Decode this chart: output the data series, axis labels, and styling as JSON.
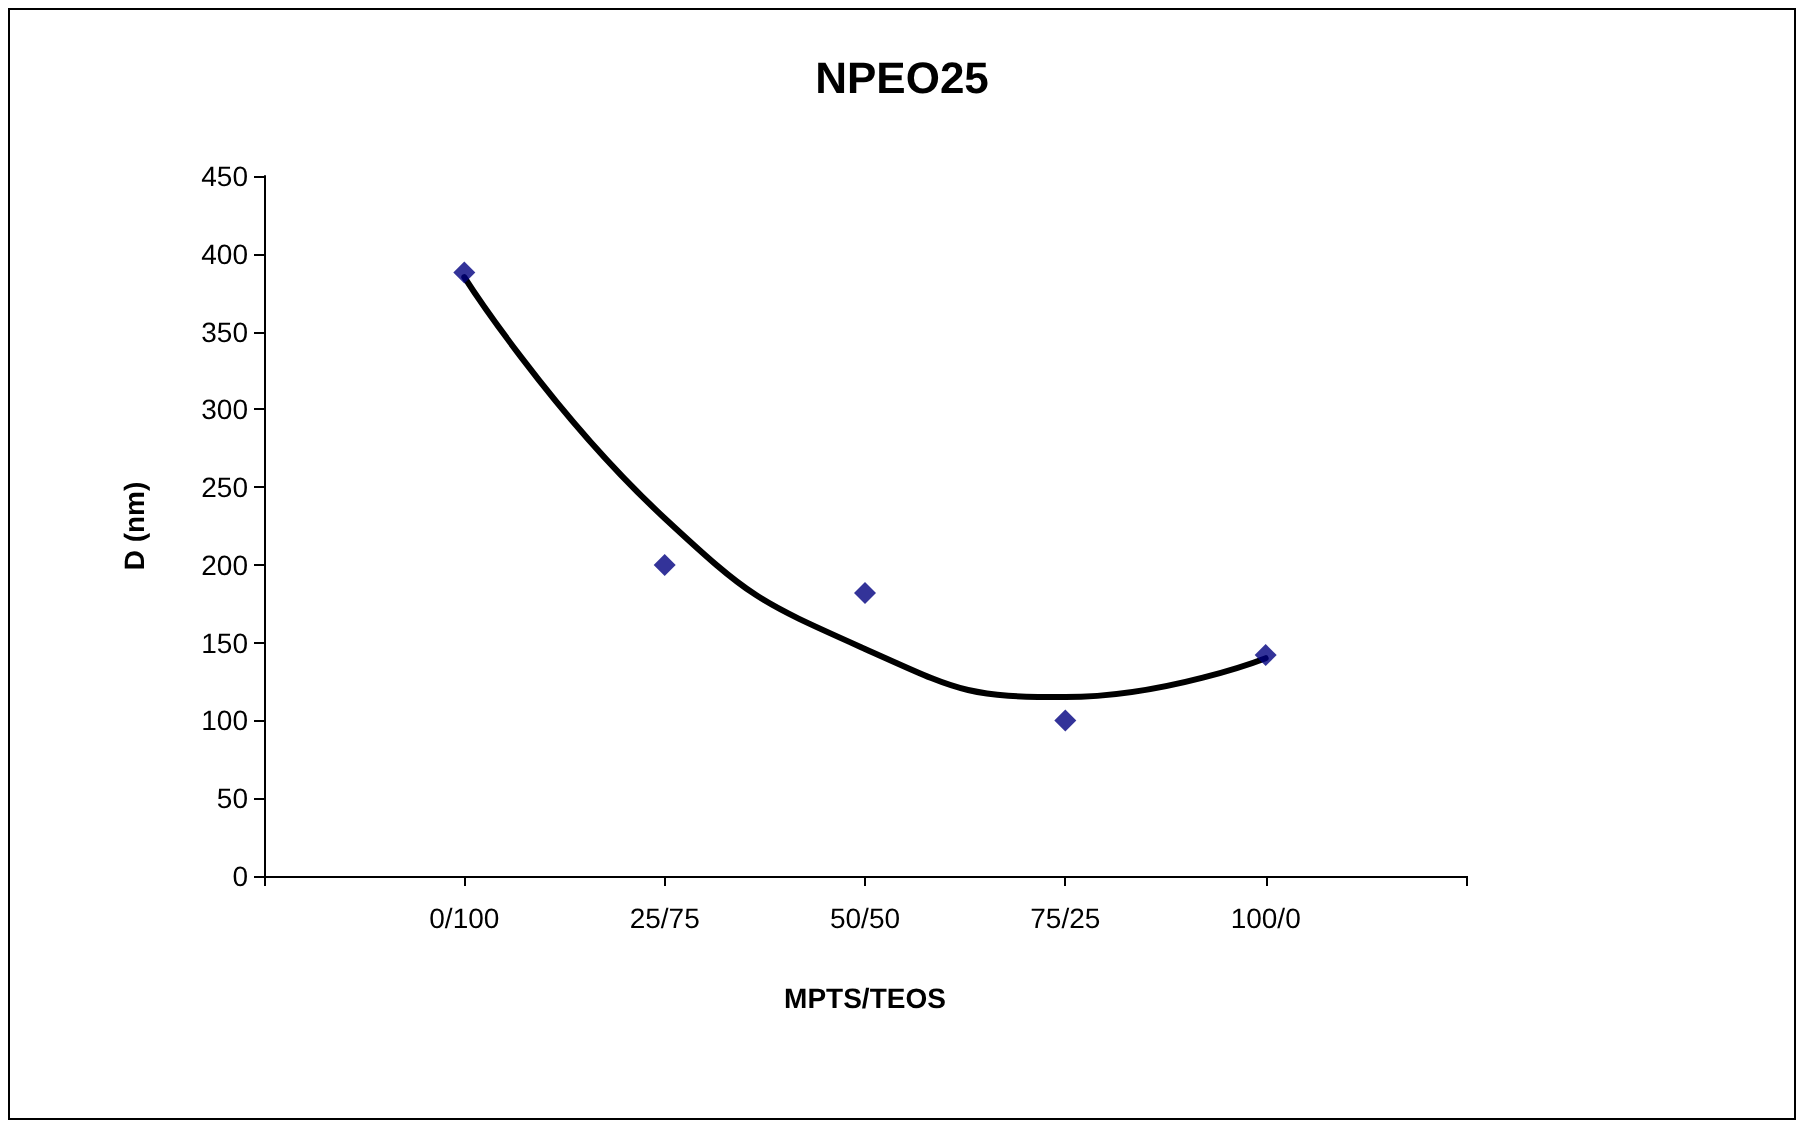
{
  "chart_data": {
    "type": "scatter",
    "title": "NPEO25",
    "xlabel": "MPTS/TEOS",
    "ylabel": "D (nm)",
    "categories": [
      null,
      "0/100",
      "25/75",
      "50/50",
      "75/25",
      "100/0",
      null
    ],
    "series": [
      {
        "color": "#000080",
        "marker": "diamond",
        "x": [
          "0/100",
          "25/75",
          "50/50",
          "75/25",
          "100/0"
        ],
        "values": [
          388,
          200,
          182,
          100,
          142
        ]
      },
      {
        "type": "line",
        "color": "#000000",
        "marker": "none",
        "x": [
          "0/100",
          "25/75",
          "50/50",
          "75/25",
          "100/0"
        ],
        "values": [
          385,
          230,
          146,
          115,
          140
        ]
      }
    ],
    "ylim": [
      0,
      450
    ],
    "yticks": [
      0,
      50,
      100,
      150,
      200,
      250,
      300,
      350,
      400,
      450
    ],
    "grid": false
  }
}
